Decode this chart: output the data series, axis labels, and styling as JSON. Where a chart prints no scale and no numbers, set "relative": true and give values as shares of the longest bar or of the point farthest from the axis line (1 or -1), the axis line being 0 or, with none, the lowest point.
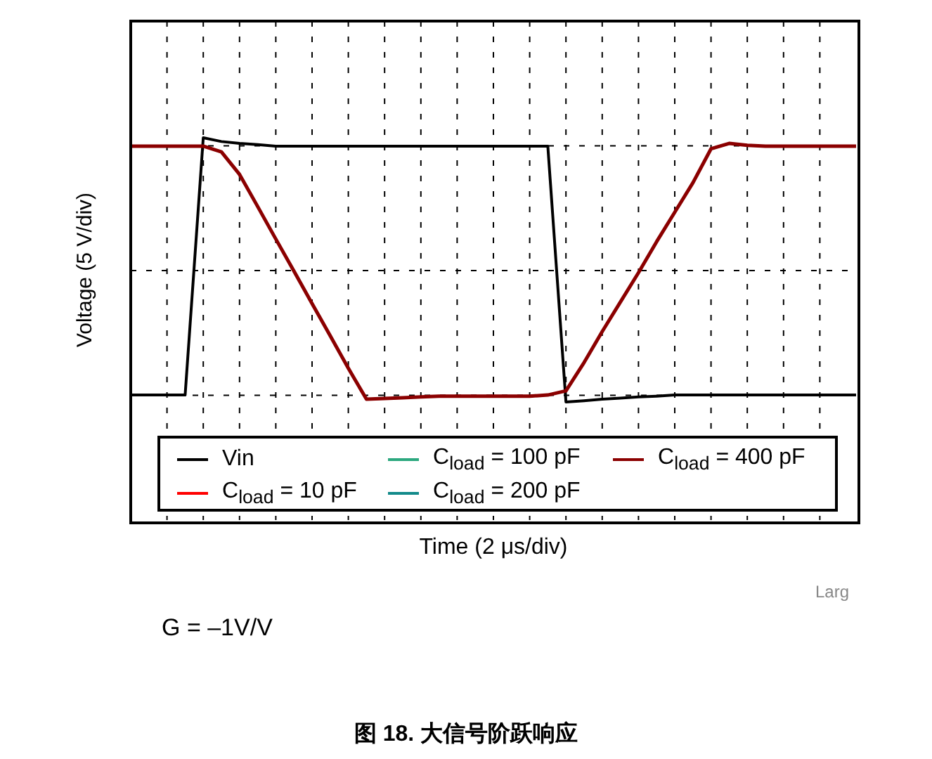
{
  "chart_data": {
    "type": "line",
    "relative": true,
    "xlabel": "Time (2 μs/div)",
    "ylabel": "Voltage (5 V/div)",
    "categories": [
      null,
      null,
      null,
      null,
      null,
      null,
      null,
      null,
      null,
      null,
      null,
      null,
      null,
      null,
      null,
      null,
      null,
      null,
      null,
      null,
      null,
      null,
      null,
      null,
      null,
      null,
      null,
      null,
      null,
      null,
      null,
      null,
      null,
      null,
      null,
      null,
      null,
      null,
      null,
      null,
      null
    ],
    "series": [
      {
        "name": "Vin",
        "color": "#000000",
        "values": [
          0.327,
          0.327,
          0.327,
          0.327,
          1.0,
          0.99,
          0.985,
          0.982,
          0.978,
          0.978,
          0.978,
          0.978,
          0.978,
          0.978,
          0.978,
          0.978,
          0.978,
          0.978,
          0.978,
          0.978,
          0.978,
          0.978,
          0.978,
          0.978,
          0.309,
          0.312,
          0.316,
          0.319,
          0.322,
          0.324,
          0.327,
          0.327,
          0.327,
          0.327,
          0.327,
          0.327,
          0.327,
          0.327,
          0.327,
          0.327,
          0.327
        ]
      },
      {
        "name": "C$_{load}$ = 10 pF",
        "color": "#ff0000",
        "values": [
          null,
          null,
          null,
          null,
          null,
          null,
          null,
          null,
          null,
          null,
          null,
          null,
          null,
          null,
          null,
          null,
          null,
          null,
          null,
          null,
          null,
          null,
          null,
          null,
          null,
          null,
          null,
          null,
          null,
          null,
          null,
          null,
          null,
          null,
          null,
          null,
          null,
          null,
          null,
          null,
          null
        ]
      },
      {
        "name": "C$_{load}$ = 100 pF",
        "color": "#2ca87f",
        "values": [
          null,
          null,
          null,
          null,
          null,
          null,
          null,
          null,
          null,
          null,
          null,
          null,
          null,
          null,
          null,
          null,
          null,
          null,
          null,
          null,
          null,
          null,
          null,
          null,
          null,
          null,
          null,
          null,
          null,
          null,
          null,
          null,
          null,
          null,
          null,
          null,
          null,
          null,
          null,
          null,
          null
        ]
      },
      {
        "name": "C$_{load}$ = 200 pF",
        "color": "#138a8a",
        "values": [
          null,
          null,
          null,
          null,
          null,
          null,
          null,
          null,
          null,
          null,
          null,
          null,
          null,
          null,
          null,
          null,
          null,
          null,
          null,
          null,
          null,
          null,
          null,
          null,
          null,
          null,
          null,
          null,
          null,
          null,
          null,
          null,
          null,
          null,
          null,
          null,
          null,
          null,
          null,
          null,
          null
        ]
      },
      {
        "name": "C$_{load}$ = 400 pF",
        "color": "#8b0000",
        "values": [
          0.978,
          0.978,
          0.978,
          0.978,
          0.978,
          0.963,
          0.904,
          0.82,
          0.735,
          0.651,
          0.566,
          0.482,
          0.397,
          0.316,
          0.318,
          0.32,
          0.322,
          0.324,
          0.324,
          0.324,
          0.324,
          0.324,
          0.324,
          0.327,
          0.338,
          0.412,
          0.493,
          0.57,
          0.647,
          0.728,
          0.805,
          0.882,
          0.971,
          0.985,
          0.98,
          0.978,
          0.978,
          0.978,
          0.978,
          0.978,
          0.978
        ]
      }
    ],
    "legend": "bottom",
    "grid": true,
    "marker": "none",
    "line_style": "solid",
    "annotations": [
      "Larg",
      "G = –1V/V",
      "图 18. 大信号阶跃响应"
    ]
  }
}
